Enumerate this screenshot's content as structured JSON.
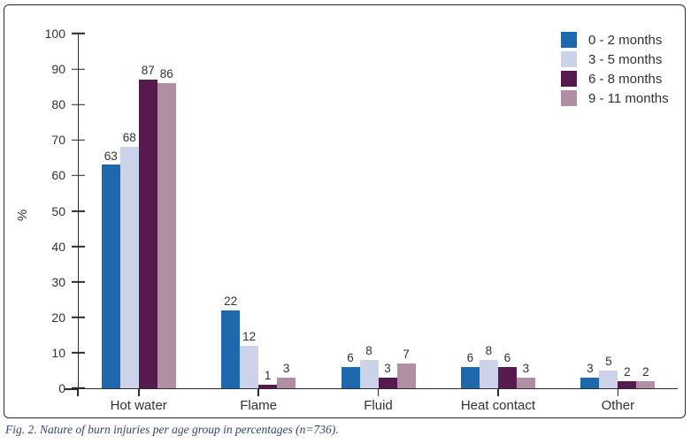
{
  "figure": {
    "caption": "Fig. 2. Nature of burn injuries per age group in percentages (n=736)."
  },
  "chart_data": {
    "type": "bar",
    "categories": [
      "Hot water",
      "Flame",
      "Fluid",
      "Heat contact",
      "Other"
    ],
    "series": [
      {
        "name": "0 - 2 months",
        "color": "#1e69ad",
        "values": [
          63,
          22,
          6,
          6,
          3
        ]
      },
      {
        "name": "3 - 5 months",
        "color": "#ccd3e9",
        "values": [
          68,
          12,
          8,
          8,
          5
        ]
      },
      {
        "name": "6 - 8 months",
        "color": "#571a4e",
        "values": [
          87,
          1,
          3,
          6,
          2
        ]
      },
      {
        "name": "9 - 11 months",
        "color": "#b08fa4",
        "values": [
          86,
          3,
          7,
          3,
          2
        ]
      }
    ],
    "title": "",
    "xlabel": "",
    "ylabel": "%",
    "ylim": [
      0,
      100
    ],
    "ytick_step": 10,
    "grid": false,
    "legend_position": "top-right",
    "bar_value_labels": true
  },
  "colors": {
    "axis": "#2b2b2b",
    "frame_border": "#2b2b2b",
    "text": "#2e3138",
    "caption_text": "#33446e",
    "background": "#ffffff"
  }
}
